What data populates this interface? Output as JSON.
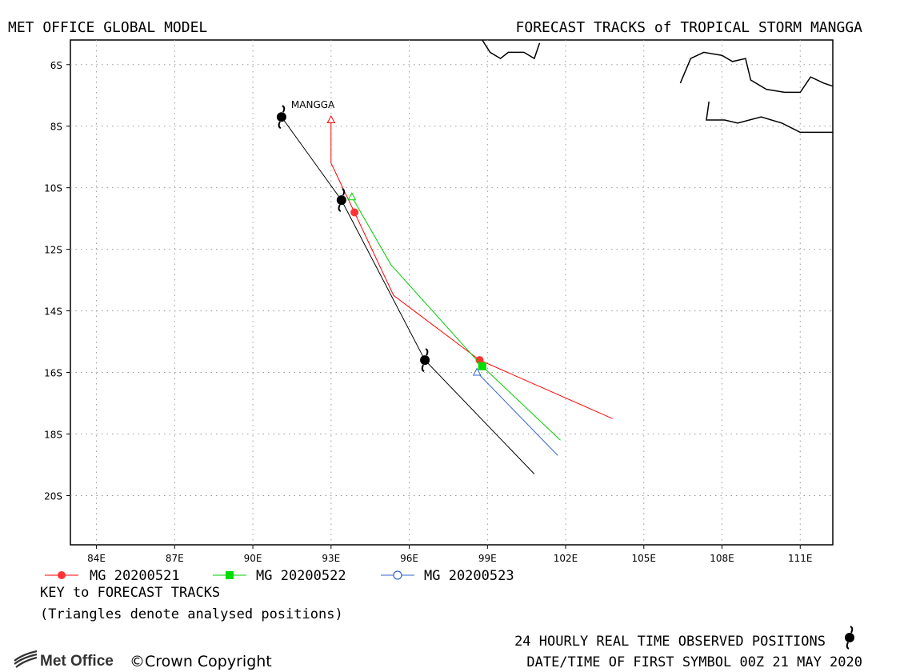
{
  "header": {
    "left_title": "MET OFFICE GLOBAL MODEL",
    "right_title": "FORECAST TRACKS of TROPICAL STORM MANGGA"
  },
  "map": {
    "storm_label": "MANGGA",
    "lon_range": [
      83,
      112.25
    ],
    "lat_range": [
      -5.2,
      -21.6
    ],
    "lon_ticks": [
      84,
      87,
      90,
      93,
      96,
      99,
      102,
      105,
      108,
      111
    ],
    "lon_tick_labels": [
      "84E",
      "87E",
      "90E",
      "93E",
      "96E",
      "99E",
      "102E",
      "105E",
      "108E",
      "111E"
    ],
    "lat_ticks": [
      -6,
      -8,
      -10,
      -12,
      -14,
      -16,
      -18,
      -20
    ],
    "lat_tick_labels": [
      "6S",
      "8S",
      "10S",
      "12S",
      "14S",
      "16S",
      "18S",
      "20S"
    ],
    "grid": true,
    "land_color": "#000000",
    "coastline_sumatra": [
      [
        98.8,
        -5.2
      ],
      [
        99.1,
        -5.6
      ],
      [
        99.5,
        -5.8
      ],
      [
        99.8,
        -5.6
      ],
      [
        100.4,
        -5.6
      ],
      [
        100.8,
        -5.8
      ],
      [
        101.0,
        -5.3
      ]
    ],
    "coastline_java": [
      [
        106.4,
        -6.6
      ],
      [
        106.8,
        -5.8
      ],
      [
        107.3,
        -5.6
      ],
      [
        108.0,
        -5.7
      ],
      [
        108.4,
        -5.9
      ],
      [
        108.9,
        -5.8
      ],
      [
        109.1,
        -6.5
      ],
      [
        109.7,
        -6.8
      ],
      [
        110.4,
        -6.9
      ],
      [
        111.0,
        -6.9
      ],
      [
        111.4,
        -6.4
      ],
      [
        111.9,
        -6.6
      ],
      [
        112.25,
        -6.7
      ]
    ],
    "coastline_java_south": [
      [
        107.5,
        -7.2
      ],
      [
        107.4,
        -7.8
      ],
      [
        108.1,
        -7.8
      ],
      [
        108.6,
        -7.9
      ],
      [
        109.5,
        -7.7
      ],
      [
        110.3,
        -7.9
      ],
      [
        111.0,
        -8.2
      ],
      [
        111.5,
        -8.2
      ],
      [
        112.25,
        -8.2
      ]
    ]
  },
  "chart_data": {
    "type": "line",
    "observed_track": {
      "name": "24 HOURLY REAL TIME OBSERVED POSITIONS",
      "color": "#000000",
      "positions": [
        [
          91.1,
          -7.7
        ],
        [
          93.4,
          -10.4
        ],
        [
          96.6,
          -15.6
        ]
      ],
      "line": [
        [
          91.1,
          -7.7
        ],
        [
          93.4,
          -10.4
        ],
        [
          96.6,
          -15.6
        ],
        [
          100.8,
          -19.3
        ]
      ]
    },
    "series": [
      {
        "name": "MG 20200521",
        "color": "#ff0000",
        "marker": "circle",
        "analysed": [
          93.0,
          -7.8
        ],
        "track": [
          [
            93.0,
            -7.8
          ],
          [
            93.0,
            -9.2
          ],
          [
            93.9,
            -10.8
          ],
          [
            95.4,
            -13.5
          ],
          [
            98.7,
            -15.6
          ],
          [
            103.8,
            -17.5
          ]
        ],
        "points": [
          [
            93.9,
            -10.8
          ],
          [
            98.7,
            -15.6
          ]
        ]
      },
      {
        "name": "MG 20200522",
        "color": "#00cc00",
        "marker": "square",
        "analysed": [
          93.8,
          -10.3
        ],
        "track": [
          [
            93.8,
            -10.3
          ],
          [
            95.3,
            -12.5
          ],
          [
            98.8,
            -15.8
          ],
          [
            101.8,
            -18.2
          ]
        ],
        "points": [
          [
            98.8,
            -15.8
          ]
        ]
      },
      {
        "name": "MG 20200523",
        "color": "#3366cc",
        "marker": "open-circle",
        "analysed": [
          98.6,
          -16.0
        ],
        "track": [
          [
            98.6,
            -16.0
          ],
          [
            101.7,
            -18.7
          ]
        ],
        "points": []
      }
    ]
  },
  "legend": {
    "key_title": "KEY to FORECAST TRACKS",
    "key_note": "(Triangles denote analysed positions)"
  },
  "footer": {
    "logo_text": "Met Office",
    "copyright": "©Crown Copyright",
    "observed_note": "24 HOURLY REAL TIME OBSERVED POSITIONS",
    "datetime_note": "DATE/TIME OF FIRST SYMBOL 00Z 21 MAY 2020"
  }
}
